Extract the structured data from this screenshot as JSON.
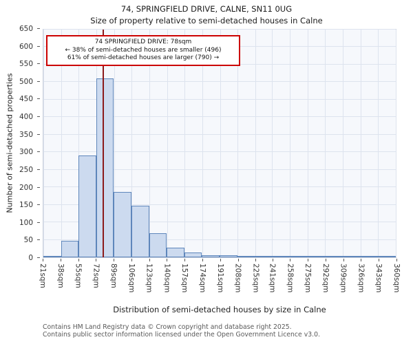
{
  "title": "74, SPRINGFIELD DRIVE, CALNE, SN11 0UG",
  "subtitle": "Size of property relative to semi-detached houses in Calne",
  "annotation": {
    "line1": "74 SPRINGFIELD DRIVE: 78sqm",
    "line2": "← 38% of semi-detached houses are smaller (496)",
    "line3": "61% of semi-detached houses are larger (790) →",
    "box_color": "#cc0000"
  },
  "marker": {
    "value_sqm": 78,
    "color": "#8b1a1a"
  },
  "footer": {
    "line1": "Contains HM Land Registry data © Crown copyright and database right 2025.",
    "line2": "Contains public sector information licensed under the Open Government Licence v3.0."
  },
  "chart_data": {
    "type": "bar",
    "title": "74, SPRINGFIELD DRIVE, CALNE, SN11 0UG",
    "subtitle": "Size of property relative to semi-detached houses in Calne",
    "xlabel": "Distribution of semi-detached houses by size in Calne",
    "ylabel": "Number of semi-detached properties",
    "bin_edges_sqm": [
      21,
      38,
      55,
      72,
      89,
      106,
      123,
      140,
      157,
      174,
      191,
      208,
      225,
      241,
      258,
      275,
      292,
      309,
      326,
      343,
      360
    ],
    "bin_labels": [
      "21sqm",
      "38sqm",
      "55sqm",
      "72sqm",
      "89sqm",
      "106sqm",
      "123sqm",
      "140sqm",
      "157sqm",
      "174sqm",
      "191sqm",
      "208sqm",
      "225sqm",
      "241sqm",
      "258sqm",
      "275sqm",
      "292sqm",
      "309sqm",
      "326sqm",
      "343sqm",
      "360sqm"
    ],
    "values": [
      4,
      48,
      290,
      510,
      186,
      148,
      68,
      27,
      14,
      6,
      5,
      4,
      2,
      4,
      1,
      1,
      0,
      0,
      0,
      3
    ],
    "ylim": [
      0,
      650
    ],
    "yticks": [
      0,
      50,
      100,
      150,
      200,
      250,
      300,
      350,
      400,
      450,
      500,
      550,
      600,
      650
    ],
    "grid": true,
    "legend": null,
    "bar_fill": "#ccdaef",
    "bar_edge": "#5e86bb"
  }
}
